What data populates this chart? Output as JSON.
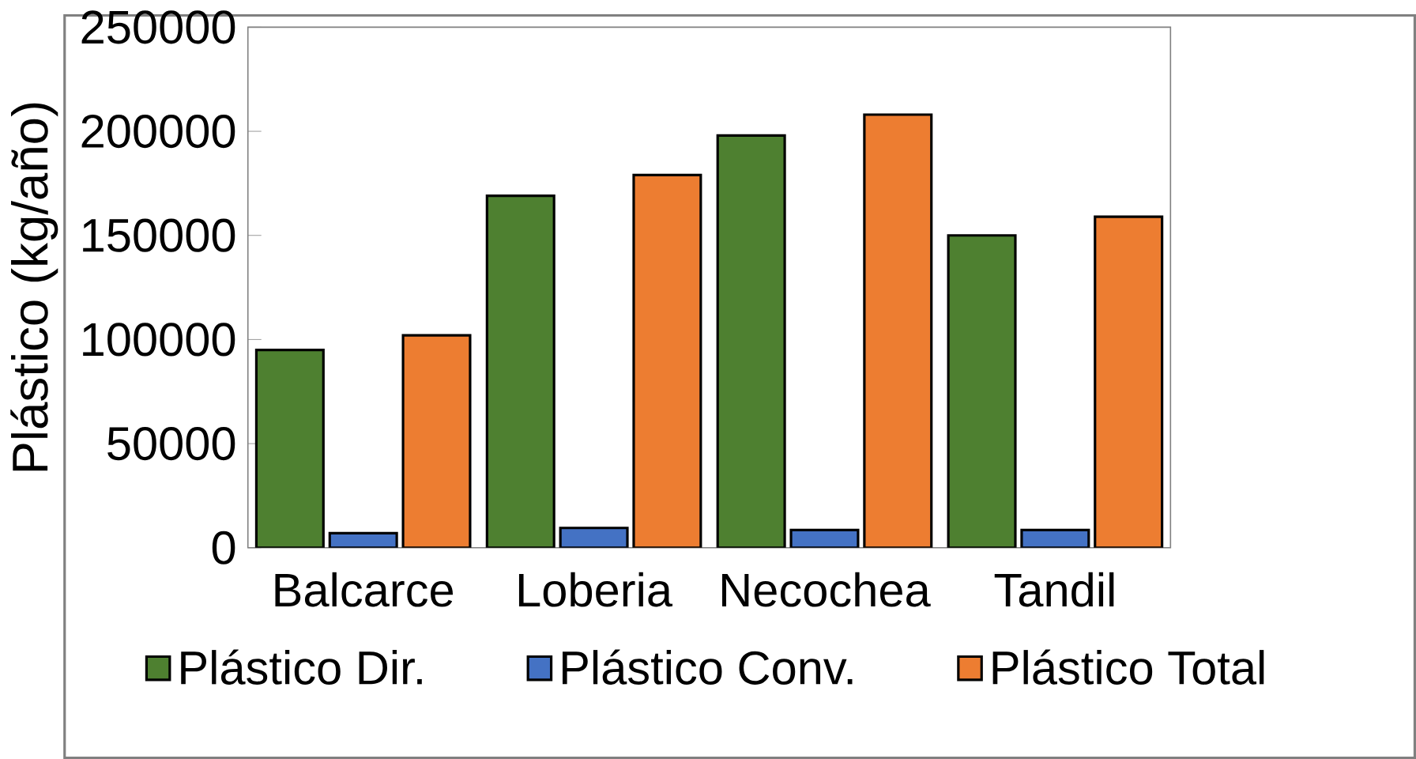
{
  "chart_data": {
    "type": "bar",
    "ylabel": "Plástico (kg/año)",
    "categories": [
      "Balcarce",
      "Loberia",
      "Necochea",
      "Tandil"
    ],
    "series": [
      {
        "name": "Plástico Dir.",
        "color": "#4e8030",
        "values": [
          95000,
          169000,
          198000,
          150000
        ]
      },
      {
        "name": "Plástico Conv.",
        "color": "#4472c4",
        "values": [
          7000,
          9500,
          8500,
          8500
        ]
      },
      {
        "name": "Plástico Total",
        "color": "#ed7d31",
        "values": [
          102000,
          179000,
          208000,
          159000
        ]
      }
    ],
    "ylim": [
      0,
      250000
    ],
    "yticks": [
      0,
      50000,
      100000,
      150000,
      200000,
      250000
    ],
    "grid": false,
    "legend": "bottom"
  }
}
